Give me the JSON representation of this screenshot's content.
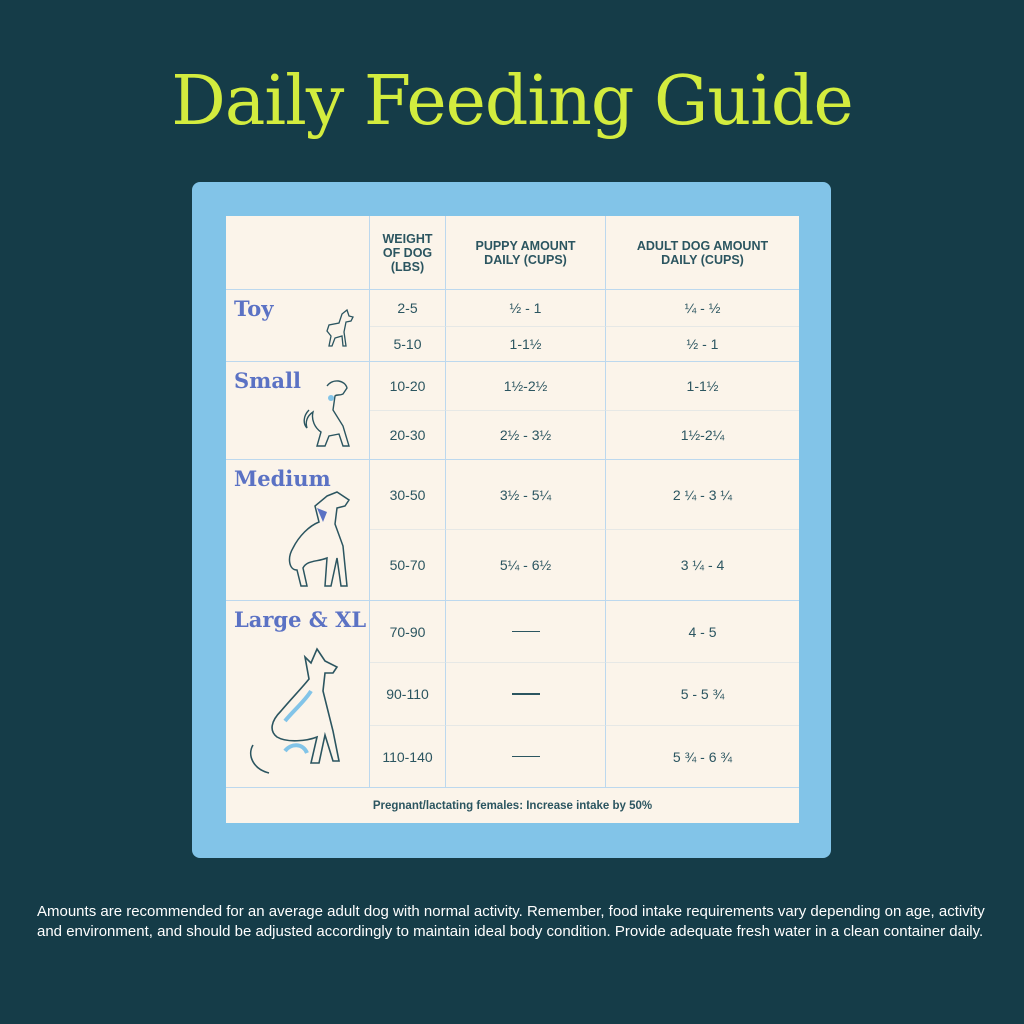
{
  "title": "Daily Feeding Guide",
  "headers": [
    "",
    "WEIGHT OF DOG (LBS)",
    "PUPPY AMOUNT DAILY (CUPS)",
    "ADULT DOG AMOUNT DAILY (CUPS)"
  ],
  "groups": [
    {
      "label": "Toy",
      "icon": "toy-dog-icon",
      "rows": [
        [
          "2-5",
          "½ - 1",
          "¼ - ½"
        ],
        [
          "5-10",
          "1-1½",
          "½ - 1"
        ]
      ]
    },
    {
      "label": "Small",
      "icon": "small-dog-icon",
      "rows": [
        [
          "10-20",
          "1½-2½",
          "1-1½"
        ],
        [
          "20-30",
          "2½ - 3½",
          "1½-2¼"
        ]
      ]
    },
    {
      "label": "Medium",
      "icon": "medium-dog-icon",
      "rows": [
        [
          "30-50",
          "3½ - 5¼",
          "2 ¼ - 3 ¼"
        ],
        [
          "50-70",
          "5¼ - 6½",
          "3 ¼ - 4"
        ]
      ]
    },
    {
      "label": "Large & XL",
      "icon": "large-dog-icon",
      "rows": [
        [
          "70-90",
          "—",
          "4 - 5"
        ],
        [
          "90-110",
          "—",
          "5 - 5 ¾"
        ],
        [
          "110-140",
          "—",
          "5 ¾ - 6 ¾"
        ]
      ]
    }
  ],
  "footer": "Pregnant/lactating females: Increase intake by 50%",
  "note": "Amounts are recommended for an average adult dog with normal activity. Remember, food intake requirements vary depending on age, activity and environment, and should be adjusted accordingly to maintain ideal body condition. Provide adequate fresh water in a clean container daily.",
  "colors": {
    "background": "#153c48",
    "title": "#d3ec3e",
    "frame": "#82c4e8",
    "sheet": "#fbf4ea",
    "group_label": "#5b72c4",
    "text": "#2b5560"
  }
}
